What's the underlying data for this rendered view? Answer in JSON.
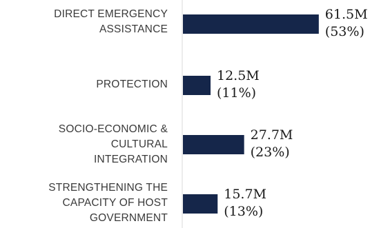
{
  "chart_data": {
    "type": "bar",
    "orientation": "horizontal",
    "categories": [
      [
        "DIRECT EMERGENCY",
        "ASSISTANCE"
      ],
      [
        "PROTECTION"
      ],
      [
        "SOCIO-ECONOMIC &",
        "CULTURAL",
        "INTEGRATION"
      ],
      [
        "STRENGTHENING THE",
        "CAPACITY OF HOST",
        "GOVERNMENT"
      ]
    ],
    "values": [
      61.5,
      12.5,
      27.7,
      15.7
    ],
    "value_labels": [
      "61.5M",
      "12.5M",
      "27.7M",
      "15.7M"
    ],
    "percent_labels": [
      "(53%)",
      "(11%)",
      "(23%)",
      "(13%)"
    ],
    "title": "",
    "xlabel": "",
    "ylabel": "",
    "grid": false,
    "colors": {
      "bar": "#15264a",
      "axis": "#d9d9d9"
    }
  }
}
